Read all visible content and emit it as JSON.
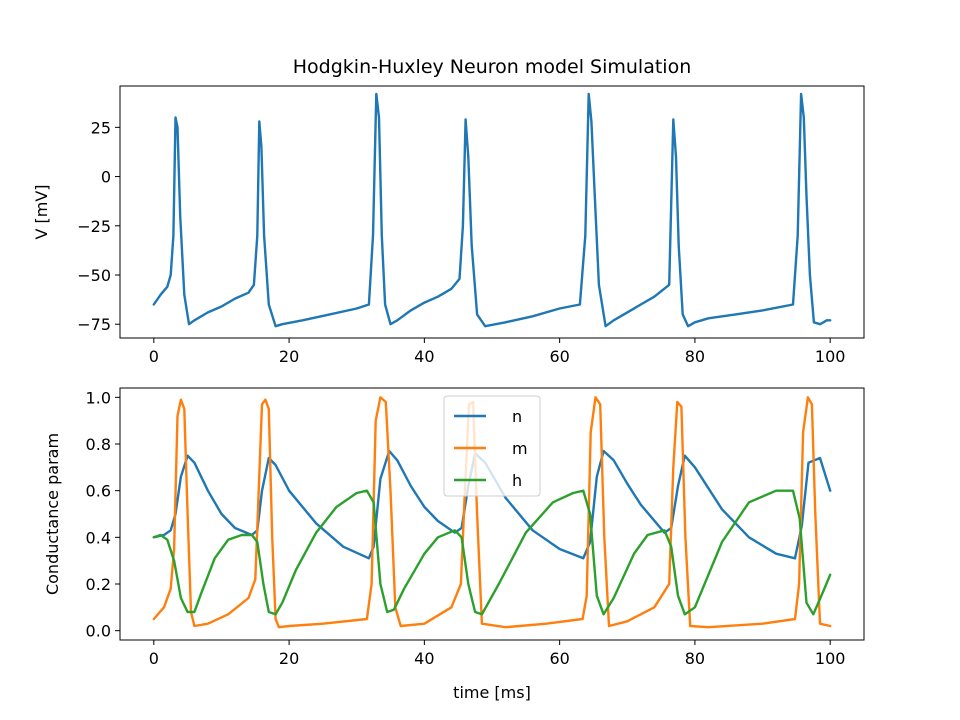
{
  "chart_data": [
    {
      "type": "line",
      "title": "Hodgkin-Huxley Neuron model Simulation",
      "xlabel": "",
      "ylabel": "V [mV]",
      "xlim": [
        -5,
        105
      ],
      "ylim": [
        -82,
        46
      ],
      "xticks": [
        0,
        20,
        40,
        60,
        80,
        100
      ],
      "xtick_labels": [
        "0",
        "20",
        "40",
        "60",
        "80",
        "100"
      ],
      "yticks": [
        25,
        0,
        -25,
        -50,
        -75
      ],
      "ytick_labels": [
        "25",
        "0",
        "−25",
        "−50",
        "−75"
      ],
      "grid": false,
      "series": [
        {
          "color": "#1f77b4",
          "x": [
            0,
            1,
            2,
            2.5,
            2.9,
            3.2,
            3.5,
            3.9,
            4.5,
            5.2,
            6,
            8,
            10,
            12,
            14,
            14.8,
            15.3,
            15.6,
            15.9,
            16.3,
            17,
            18,
            19,
            22,
            26,
            30,
            31.8,
            32.4,
            32.9,
            33.3,
            33.7,
            34.2,
            35,
            36,
            38,
            40,
            42,
            44,
            45.2,
            45.7,
            46.1,
            46.5,
            47,
            47.8,
            49,
            52,
            56,
            60,
            63,
            63.8,
            64.3,
            64.7,
            65.2,
            65.8,
            66.8,
            68,
            70,
            72,
            74,
            76.2,
            76.8,
            77.2,
            77.6,
            78.2,
            79,
            80,
            82,
            86,
            90,
            94.5,
            95.2,
            95.7,
            96.1,
            96.5,
            97,
            97.6,
            98.5,
            99,
            99.5,
            100
          ],
          "y": [
            -65,
            -60,
            -56,
            -50,
            -30,
            30,
            25,
            -20,
            -60,
            -75,
            -73,
            -69,
            -66,
            -62,
            -59,
            -55,
            -30,
            28,
            15,
            -30,
            -65,
            -76,
            -75,
            -73,
            -70,
            -67,
            -65,
            -30,
            42,
            30,
            -30,
            -65,
            -75,
            -73,
            -68,
            -64,
            -61,
            -57,
            -52,
            -25,
            29,
            10,
            -35,
            -70,
            -76,
            -74,
            -71,
            -67,
            -65,
            -30,
            42,
            28,
            -10,
            -55,
            -76,
            -73,
            -69,
            -65,
            -61,
            -55,
            29,
            10,
            -35,
            -70,
            -76,
            -74,
            -72,
            -70,
            -68,
            -65,
            -30,
            42,
            30,
            -10,
            -50,
            -74,
            -75,
            -74,
            -73,
            -73
          ]
        }
      ]
    },
    {
      "type": "line",
      "title": "",
      "xlabel": "time [ms]",
      "ylabel": "Conductance param",
      "xlim": [
        -5,
        105
      ],
      "ylim": [
        -0.04,
        1.04
      ],
      "xticks": [
        0,
        20,
        40,
        60,
        80,
        100
      ],
      "xtick_labels": [
        "0",
        "20",
        "40",
        "60",
        "80",
        "100"
      ],
      "yticks": [
        0.0,
        0.2,
        0.4,
        0.6,
        0.8,
        1.0
      ],
      "ytick_labels": [
        "0.0",
        "0.2",
        "0.4",
        "0.6",
        "0.8",
        "1.0"
      ],
      "grid": false,
      "legend": "upper-center",
      "series": [
        {
          "name": "n",
          "color": "#1f77b4",
          "x": [
            0,
            1.5,
            2.5,
            3.2,
            4,
            5,
            6,
            8,
            10,
            12,
            14.5,
            15.3,
            16,
            17,
            18,
            20,
            24,
            28,
            31.8,
            32.5,
            33.5,
            34.8,
            36,
            38,
            40,
            42,
            44.5,
            45.5,
            46.5,
            47.5,
            49,
            52,
            56,
            60,
            63.5,
            64.5,
            65.5,
            66.5,
            68,
            70,
            72,
            75.5,
            76.5,
            77.5,
            78.5,
            80,
            84,
            88,
            92,
            94.8,
            95.8,
            96.8,
            98.5,
            100
          ],
          "y": [
            0.4,
            0.41,
            0.43,
            0.5,
            0.66,
            0.75,
            0.72,
            0.6,
            0.5,
            0.44,
            0.41,
            0.43,
            0.6,
            0.74,
            0.71,
            0.6,
            0.46,
            0.36,
            0.31,
            0.36,
            0.65,
            0.77,
            0.73,
            0.62,
            0.53,
            0.47,
            0.42,
            0.44,
            0.62,
            0.76,
            0.72,
            0.57,
            0.43,
            0.35,
            0.31,
            0.38,
            0.66,
            0.77,
            0.73,
            0.63,
            0.54,
            0.42,
            0.44,
            0.62,
            0.75,
            0.7,
            0.52,
            0.4,
            0.33,
            0.31,
            0.45,
            0.72,
            0.74,
            0.6
          ]
        },
        {
          "name": "m",
          "color": "#ff7f0e",
          "x": [
            0,
            1.5,
            2.5,
            3,
            3.5,
            4,
            4.5,
            5,
            5.5,
            6,
            8,
            11,
            14,
            15,
            15.5,
            16,
            16.5,
            17,
            17.5,
            18,
            18.5,
            20,
            25,
            31.5,
            32.2,
            32.8,
            33.5,
            34.3,
            35,
            35.7,
            36.5,
            40,
            44,
            45.4,
            46,
            46.6,
            47.2,
            47.8,
            48.5,
            52,
            58,
            63.4,
            64,
            64.6,
            65.3,
            66,
            66.6,
            67.3,
            70,
            74,
            76.2,
            76.8,
            77.4,
            78,
            78.6,
            79.3,
            82,
            90,
            94.8,
            95.4,
            96,
            96.7,
            97.3,
            97.8,
            98.5,
            100
          ],
          "y": [
            0.05,
            0.1,
            0.18,
            0.35,
            0.92,
            0.99,
            0.95,
            0.5,
            0.08,
            0.02,
            0.03,
            0.07,
            0.14,
            0.22,
            0.6,
            0.97,
            0.99,
            0.95,
            0.4,
            0.05,
            0.015,
            0.02,
            0.03,
            0.05,
            0.2,
            0.9,
            1.0,
            0.98,
            0.6,
            0.1,
            0.02,
            0.03,
            0.1,
            0.2,
            0.6,
            0.97,
            0.98,
            0.5,
            0.03,
            0.015,
            0.03,
            0.05,
            0.15,
            0.85,
            1.0,
            0.97,
            0.4,
            0.02,
            0.04,
            0.1,
            0.2,
            0.7,
            0.98,
            0.96,
            0.4,
            0.02,
            0.015,
            0.03,
            0.05,
            0.2,
            0.85,
            1.0,
            0.97,
            0.5,
            0.03,
            0.02
          ]
        },
        {
          "name": "h",
          "color": "#2ca02c",
          "x": [
            0,
            1,
            2,
            3,
            4,
            5,
            6,
            7,
            9,
            11,
            13,
            14.5,
            15.3,
            16.2,
            17,
            18,
            19,
            21,
            24,
            27,
            30,
            31.5,
            32.5,
            33.5,
            34.5,
            35.5,
            37,
            40,
            42,
            44.5,
            45.5,
            46.5,
            47.5,
            48.5,
            51,
            55,
            59,
            62,
            63.5,
            64.5,
            65.5,
            66.5,
            68,
            71,
            73,
            75.5,
            76.5,
            77.5,
            78.5,
            80,
            84,
            88,
            92,
            94.5,
            95.5,
            96.5,
            97.5,
            99,
            100
          ],
          "y": [
            0.4,
            0.41,
            0.39,
            0.3,
            0.14,
            0.08,
            0.08,
            0.16,
            0.31,
            0.39,
            0.41,
            0.41,
            0.38,
            0.2,
            0.08,
            0.07,
            0.12,
            0.26,
            0.42,
            0.53,
            0.59,
            0.6,
            0.55,
            0.2,
            0.08,
            0.09,
            0.18,
            0.33,
            0.4,
            0.43,
            0.4,
            0.2,
            0.08,
            0.07,
            0.2,
            0.42,
            0.55,
            0.59,
            0.6,
            0.5,
            0.15,
            0.07,
            0.14,
            0.33,
            0.41,
            0.43,
            0.36,
            0.15,
            0.07,
            0.1,
            0.38,
            0.55,
            0.6,
            0.6,
            0.48,
            0.12,
            0.07,
            0.17,
            0.24
          ]
        }
      ]
    }
  ]
}
